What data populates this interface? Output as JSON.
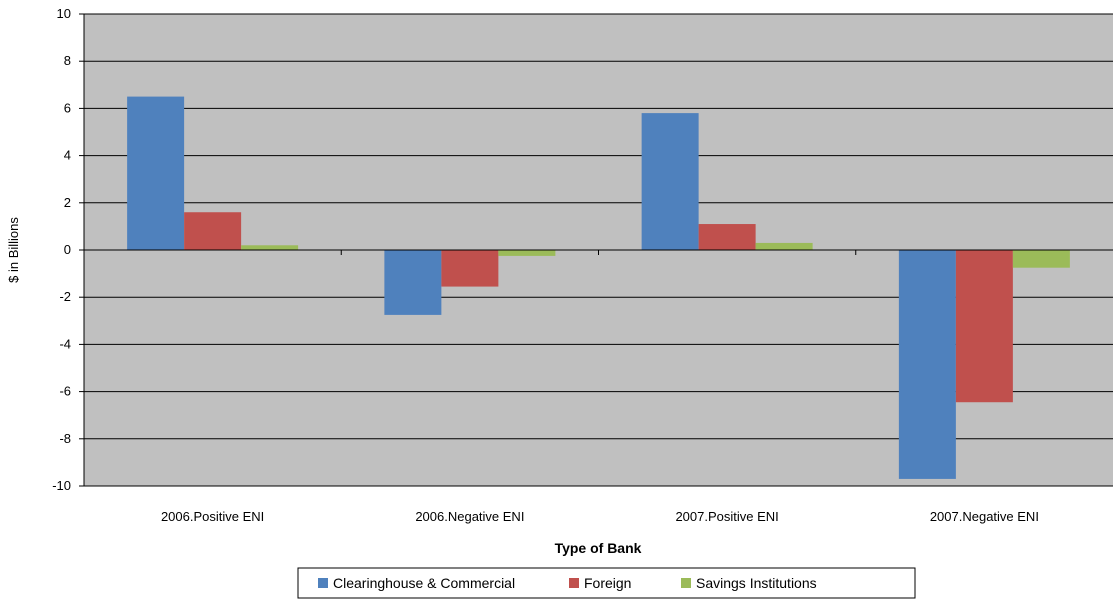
{
  "chart_data": {
    "type": "bar",
    "title": "",
    "xlabel": "Type of Bank",
    "ylabel": "$ in Billions",
    "ylim": [
      -10,
      10
    ],
    "yticks": [
      10,
      8,
      6,
      4,
      2,
      0,
      -2,
      -4,
      -6,
      -8,
      -10
    ],
    "categories": [
      "2006.Positive ENI",
      "2006.Negative ENI",
      "2007.Positive ENI",
      "2007.Negative ENI"
    ],
    "series": [
      {
        "name": "Clearinghouse & Commercial",
        "color": "#4F81BD",
        "values": [
          6.5,
          -2.75,
          5.8,
          -9.7
        ]
      },
      {
        "name": "Foreign",
        "color": "#C0504D",
        "values": [
          1.6,
          -1.55,
          1.1,
          -6.45
        ]
      },
      {
        "name": "Savings Institutions",
        "color": "#9BBB59",
        "values": [
          0.2,
          -0.25,
          0.3,
          -0.75
        ]
      }
    ],
    "grid": true,
    "legend": "bottom-center",
    "plot_background": "#C0C0C0"
  }
}
